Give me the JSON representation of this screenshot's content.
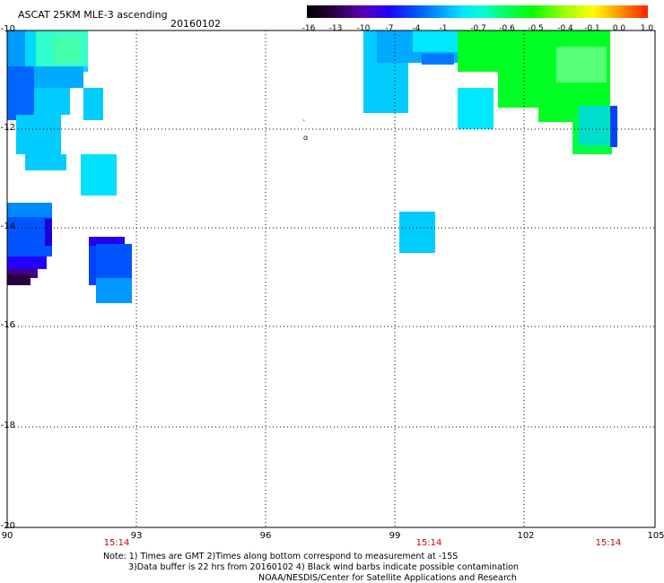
{
  "header": {
    "title": "ASCAT 25KM MLE-3 ascending",
    "date": "20160102"
  },
  "colorbar": {
    "tick_labels": [
      "-16",
      "-13",
      "-10",
      "-7",
      "-4",
      "-1",
      "-0.7",
      "-0.6",
      "-0.5",
      "-0.4",
      "-0.1",
      "0.0",
      "1.0"
    ],
    "colors": [
      "#2a0030",
      "#4a0070",
      "#6a00c8",
      "#0000ff",
      "#0066ff",
      "#00aaff",
      "#00e5ff",
      "#00ffaa",
      "#00ff00",
      "#88ff00",
      "#ffff00",
      "#ff8800",
      "#ff0000"
    ]
  },
  "axes": {
    "y_labels": [
      "-10",
      "-12",
      "-14",
      "-16",
      "-18",
      "-20"
    ],
    "x_labels": [
      "90",
      "93",
      "96",
      "99",
      "102",
      "105"
    ],
    "time_labels": [
      "15:14",
      "15:14",
      "15:14"
    ]
  },
  "notes": {
    "line1": "Note: 1) Times are GMT 2)Times along bottom correspond to measurement at -15S",
    "line2": "3)Data buffer is 22 hrs from 20160102 4) Black wind barbs indicate possible contamination",
    "line3": "NOAA/NESDIS/Center for Satellite Applications and Research"
  }
}
